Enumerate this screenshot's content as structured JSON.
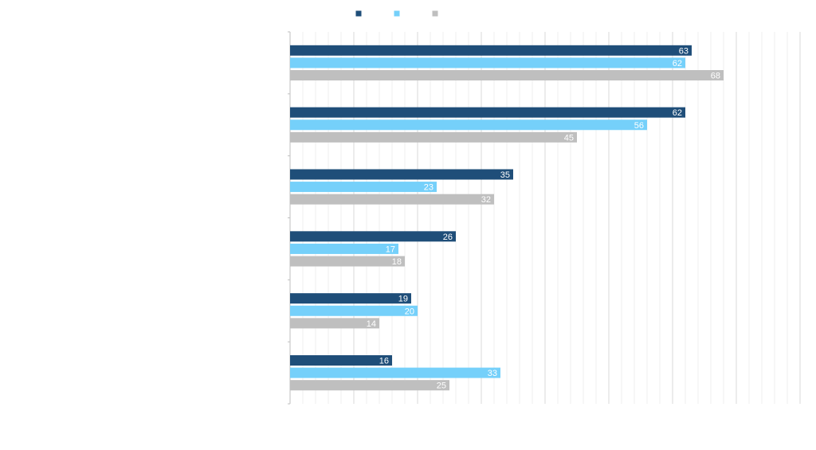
{
  "chart_data": {
    "type": "bar",
    "orientation": "horizontal",
    "categories": [
      "",
      "",
      "",
      "",
      "",
      ""
    ],
    "series": [
      {
        "values": [
          63,
          62,
          35,
          26,
          19,
          16
        ],
        "color": "#1f4e79"
      },
      {
        "values": [
          62,
          56,
          23,
          17,
          20,
          33
        ],
        "color": "#75d0fa"
      },
      {
        "values": [
          68,
          45,
          32,
          18,
          14,
          25
        ],
        "color": "#bfbfbf"
      }
    ],
    "xlim": [
      0,
      80
    ],
    "grid": true,
    "data_labels": true,
    "legend": "top-center"
  }
}
